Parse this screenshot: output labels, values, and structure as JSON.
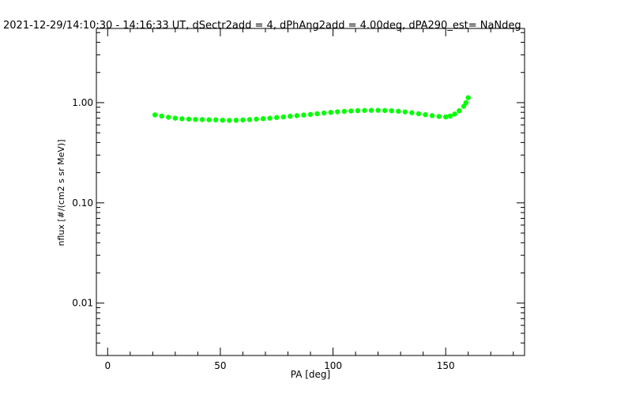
{
  "chart_data": {
    "type": "scatter",
    "title": "2021-12-29/14:10:30 - 14:16:33 UT, dSectr2add = 4, dPhAng2add = 4.00deg, dPA290_est=   NaNdeg",
    "xlabel": "PA [deg]",
    "ylabel": "nflux [#/(cm2 s sr MeV)]",
    "xlim": [
      -5,
      185
    ],
    "ylim": [
      0.003,
      5.5
    ],
    "yscale": "log",
    "x_ticks": [
      0,
      50,
      100,
      150
    ],
    "x_tick_labels": [
      "0",
      "50",
      "100",
      "150"
    ],
    "y_ticks": [
      0.01,
      0.1,
      1.0
    ],
    "y_tick_labels": [
      "0.01",
      "0.10",
      "1.00"
    ],
    "grid": false,
    "legend": "none",
    "marker_color": "#00ff00",
    "series": [
      {
        "x": [
          21,
          24,
          27,
          30,
          33,
          36,
          39,
          42,
          45,
          48,
          51,
          54,
          57,
          60,
          63,
          66,
          69,
          72,
          75,
          78,
          81,
          84,
          87,
          90,
          93,
          96,
          99,
          102,
          105,
          108,
          111,
          114,
          117,
          120,
          123,
          126,
          129,
          132,
          135,
          138,
          141,
          144,
          147,
          150,
          152,
          154,
          156,
          158,
          159,
          160
        ],
        "y": [
          0.755,
          0.735,
          0.715,
          0.7,
          0.69,
          0.685,
          0.68,
          0.678,
          0.675,
          0.673,
          0.668,
          0.665,
          0.667,
          0.672,
          0.678,
          0.685,
          0.692,
          0.7,
          0.71,
          0.72,
          0.732,
          0.742,
          0.752,
          0.763,
          0.775,
          0.788,
          0.8,
          0.81,
          0.818,
          0.826,
          0.832,
          0.836,
          0.838,
          0.838,
          0.835,
          0.83,
          0.82,
          0.808,
          0.793,
          0.775,
          0.758,
          0.742,
          0.728,
          0.72,
          0.735,
          0.77,
          0.83,
          0.92,
          1.0,
          1.12
        ]
      }
    ]
  }
}
